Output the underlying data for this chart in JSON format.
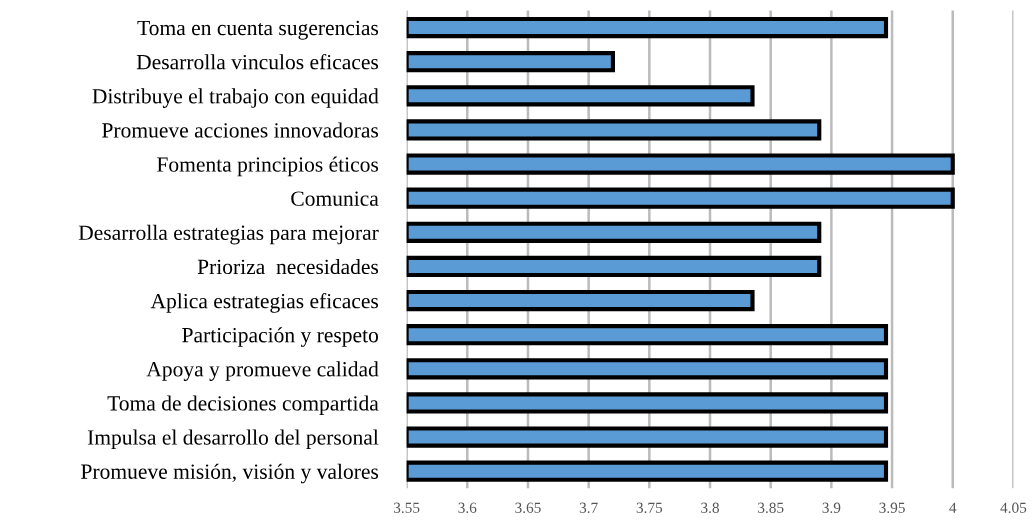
{
  "chart_data": {
    "type": "bar",
    "orientation": "horizontal",
    "categories": [
      "Toma en cuenta sugerencias",
      "Desarrolla vinculos eficaces",
      "Distribuye el trabajo con equidad",
      "Promueve acciones innovadoras",
      "Fomenta principios éticos",
      "Comunica",
      "Desarrolla estrategias para mejorar",
      "Prioriza  necesidades",
      "Aplica estrategias eficaces",
      "Participación y respeto",
      "Apoya y promueve calidad",
      "Toma de decisiones compartida",
      "Impulsa el desarrollo del personal",
      "Promueve misión, visión y valores"
    ],
    "values": [
      3.945,
      3.72,
      3.835,
      3.89,
      4.0,
      4.0,
      3.89,
      3.89,
      3.835,
      3.945,
      3.945,
      3.945,
      3.945,
      3.945
    ],
    "color": "#5b9bd5",
    "xlim": [
      3.55,
      4.05
    ],
    "xticks": [
      3.55,
      3.6,
      3.65,
      3.7,
      3.75,
      3.8,
      3.85,
      3.9,
      3.95,
      4,
      4.05
    ],
    "grid": "x"
  }
}
